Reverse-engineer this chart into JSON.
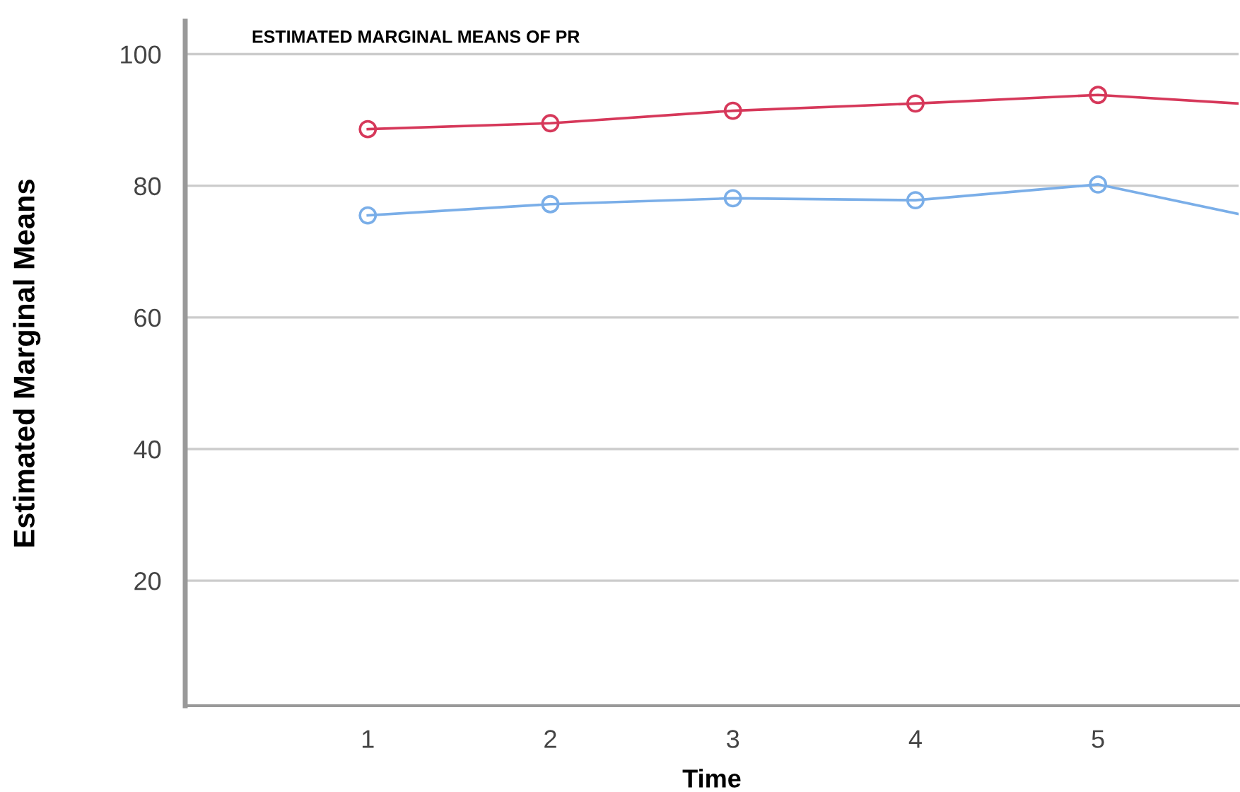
{
  "chart_data": {
    "type": "line",
    "title": "ESTIMATED MARGINAL MEANS OF PR",
    "xlabel": "Time",
    "ylabel": "Estimated Marginal Means",
    "x": [
      1,
      2,
      3,
      4,
      5,
      5.77
    ],
    "series": [
      {
        "color": "#d6385a",
        "values": [
          88.6,
          89.5,
          91.4,
          92.5,
          93.8,
          92.5
        ]
      },
      {
        "color": "#7aaee8",
        "values": [
          75.5,
          77.2,
          78.1,
          77.8,
          80.2,
          75.7
        ]
      }
    ],
    "xlim": [
      0,
      5.77
    ],
    "xticks": [
      1,
      2,
      3,
      4,
      5
    ],
    "ylim": [
      1,
      105
    ],
    "yticks": [
      20,
      40,
      60,
      80,
      100
    ],
    "grid": "y",
    "marker": "circle",
    "line_style": "solid",
    "legend": false
  }
}
